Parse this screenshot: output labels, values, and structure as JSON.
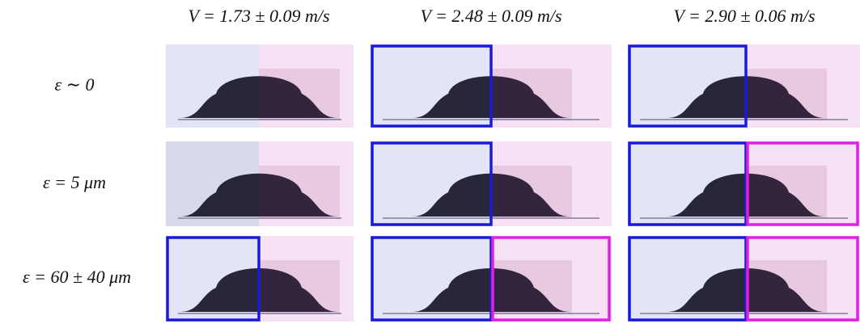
{
  "columns": [
    "V = 1.73 ± 0.09 m/s",
    "V = 2.48 ± 0.09 m/s",
    "V = 2.90 ± 0.06 m/s"
  ],
  "rows": [
    "ε ∼ 0",
    "ε = 5 μm",
    "ε = 60 ± 40 μm"
  ]
}
